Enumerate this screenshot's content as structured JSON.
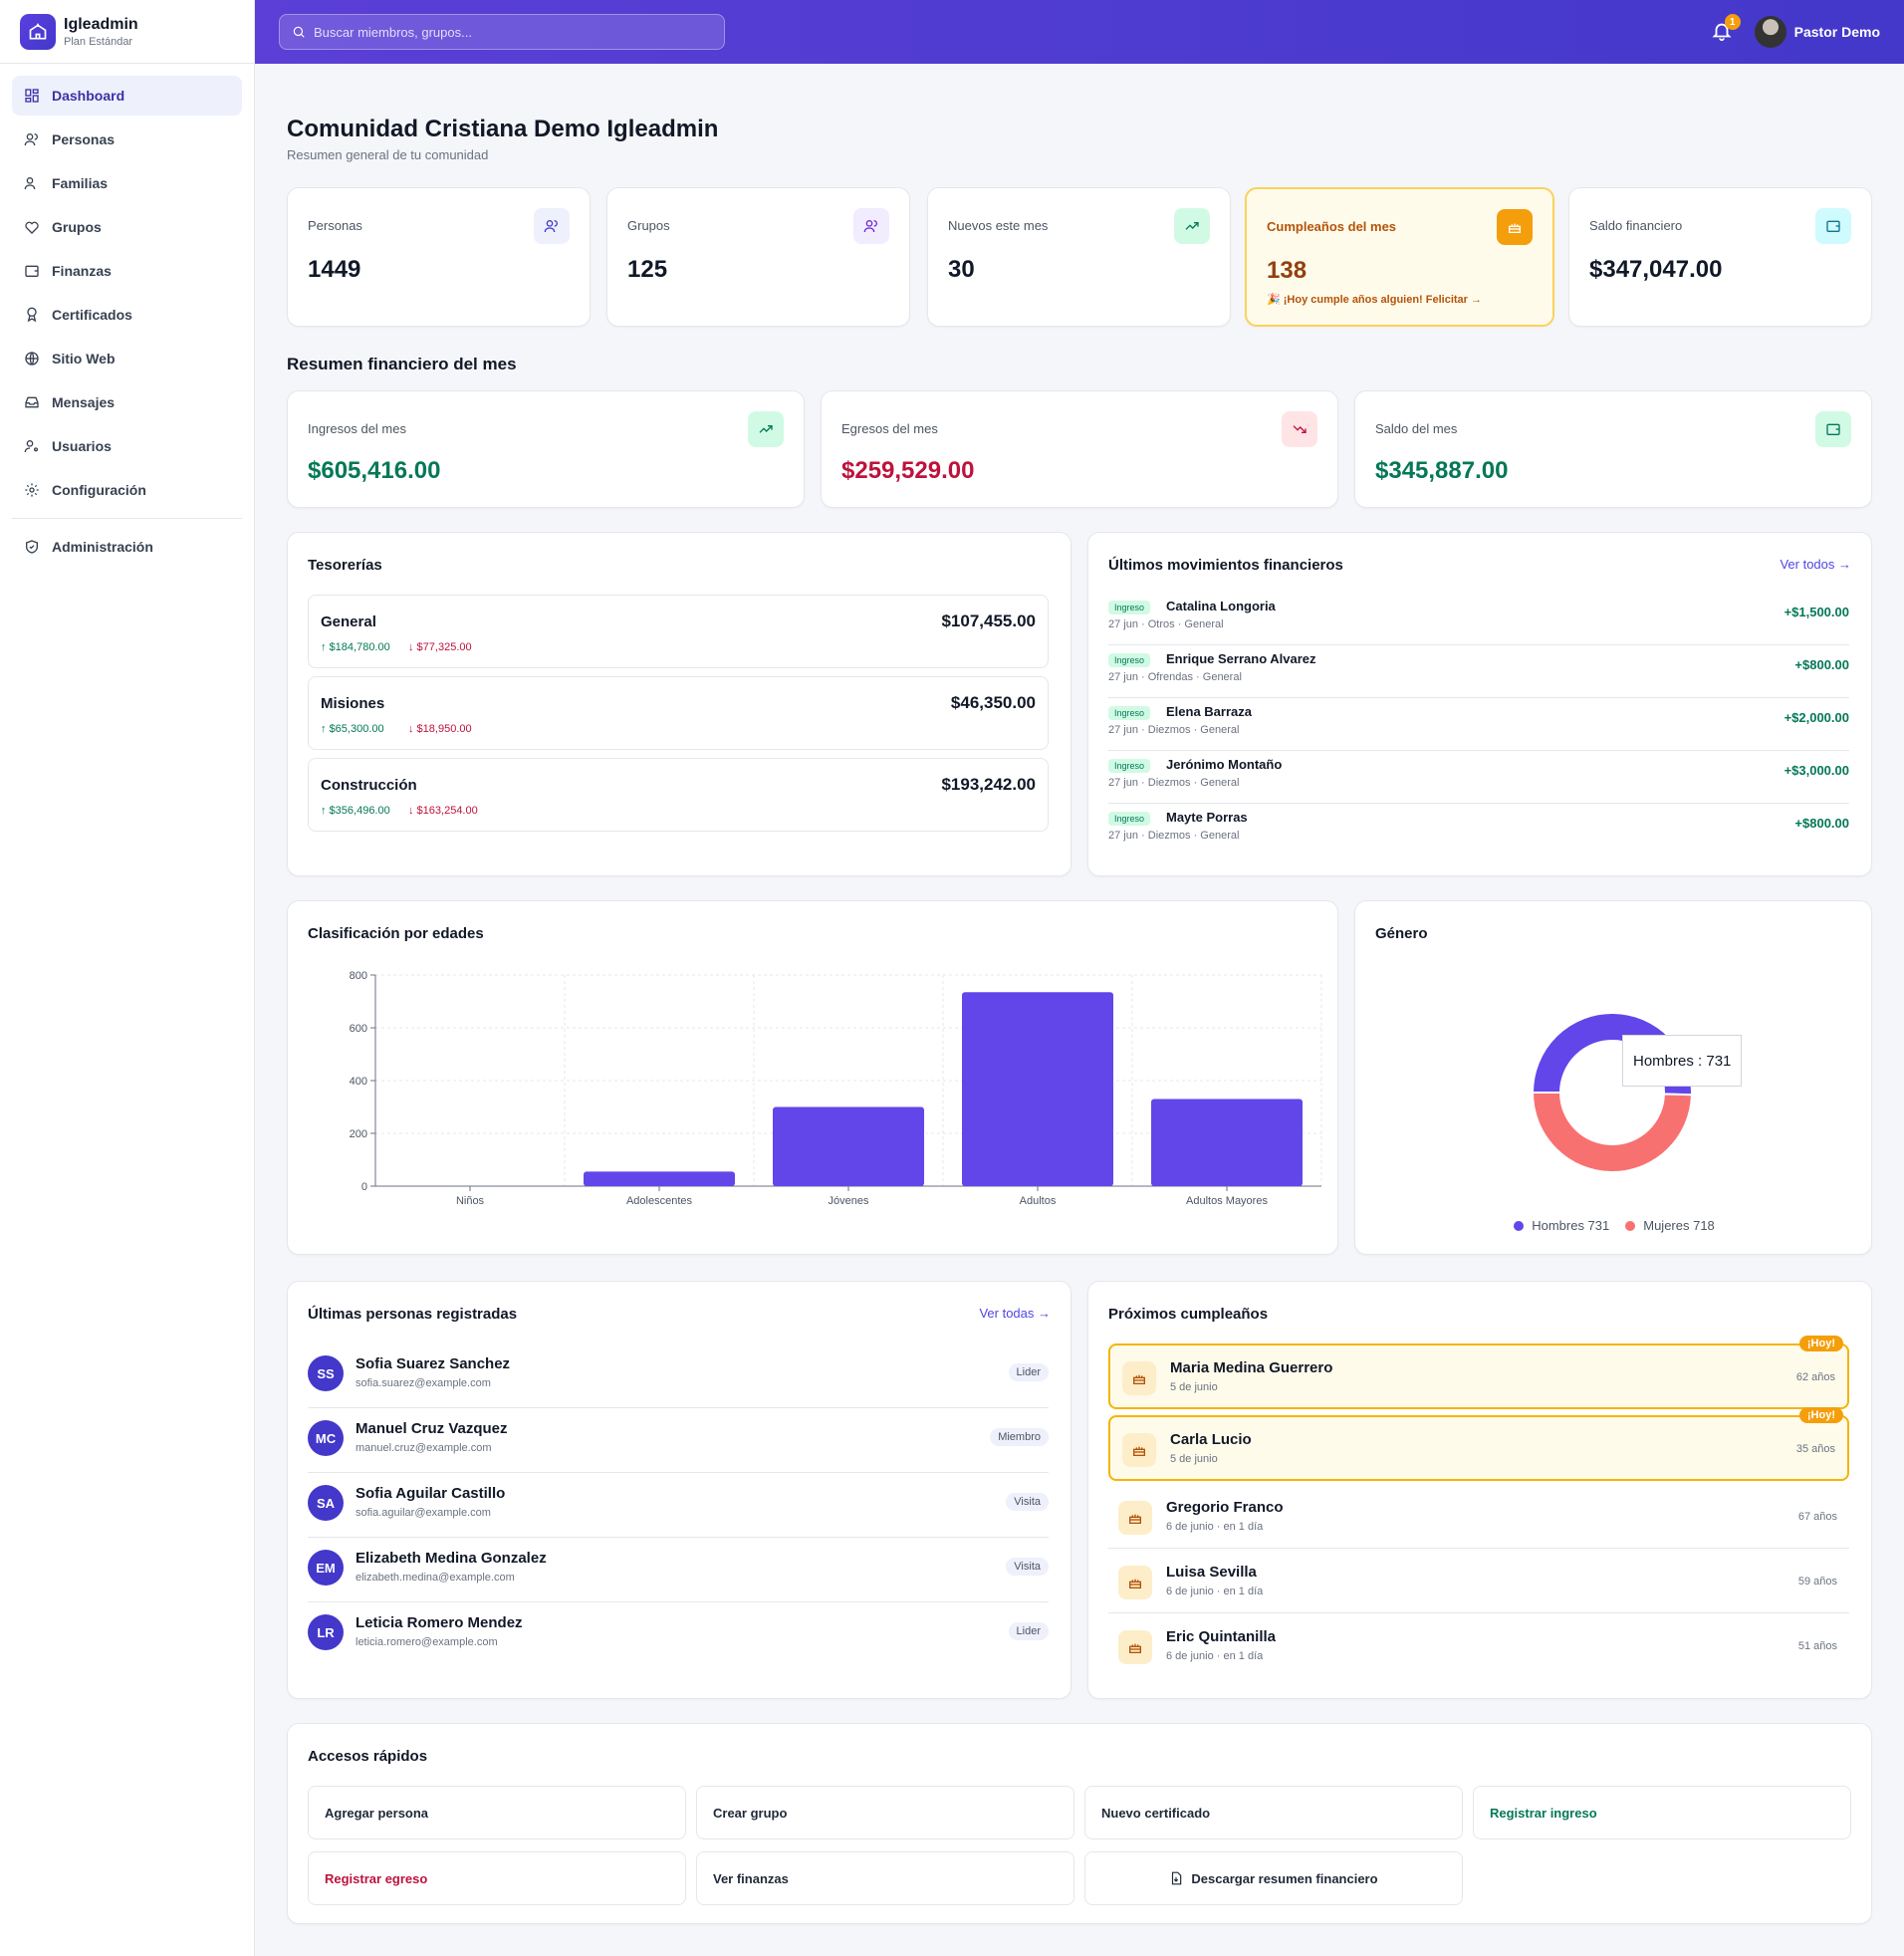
{
  "brand": {
    "name": "Igleadmin",
    "plan": "Plan Estándar"
  },
  "sidebar": {
    "items": [
      {
        "label": "Dashboard",
        "icon": "dashboard-icon"
      },
      {
        "label": "Personas",
        "icon": "users-icon"
      },
      {
        "label": "Familias",
        "icon": "family-icon"
      },
      {
        "label": "Grupos",
        "icon": "heart-handshake-icon"
      },
      {
        "label": "Finanzas",
        "icon": "wallet-icon"
      },
      {
        "label": "Certificados",
        "icon": "award-icon"
      },
      {
        "label": "Sitio Web",
        "icon": "globe-icon"
      },
      {
        "label": "Mensajes",
        "icon": "inbox-icon"
      },
      {
        "label": "Usuarios",
        "icon": "user-key-icon"
      },
      {
        "label": "Configuración",
        "icon": "gear-icon"
      }
    ],
    "admin": {
      "label": "Administración",
      "icon": "shield-icon"
    }
  },
  "header": {
    "search_placeholder": "Buscar miembros, grupos...",
    "notifications": "1",
    "user_name": "Pastor Demo"
  },
  "page": {
    "title": "Comunidad Cristiana Demo Igleadmin",
    "subtitle": "Resumen general de tu comunidad"
  },
  "stats": [
    {
      "label": "Personas",
      "value": "1449"
    },
    {
      "label": "Grupos",
      "value": "125"
    },
    {
      "label": "Nuevos este mes",
      "value": "30"
    },
    {
      "label": "Cumpleaños del mes",
      "value": "138",
      "note": "🎉 ¡Hoy cumple años alguien! Felicitar →"
    },
    {
      "label": "Saldo financiero",
      "value": "$347,047.00"
    }
  ],
  "finance": {
    "title": "Resumen financiero del mes",
    "cards": [
      {
        "label": "Ingresos del mes",
        "value": "$605,416.00",
        "color": "#047857"
      },
      {
        "label": "Egresos del mes",
        "value": "$259,529.00",
        "color": "#be123c"
      },
      {
        "label": "Saldo del mes",
        "value": "$345,887.00",
        "color": "#047857"
      }
    ]
  },
  "treasuries": {
    "title": "Tesorerías",
    "items": [
      {
        "name": "General",
        "amount": "$107,455.00",
        "in": "↑ $184,780.00",
        "out": "↓ $77,325.00"
      },
      {
        "name": "Misiones",
        "amount": "$46,350.00",
        "in": "↑ $65,300.00",
        "out": "↓ $18,950.00"
      },
      {
        "name": "Construcción",
        "amount": "$193,242.00",
        "in": "↑ $356,496.00",
        "out": "↓ $163,254.00"
      }
    ]
  },
  "movements": {
    "title": "Últimos movimientos financieros",
    "link": "Ver todos →",
    "items": [
      {
        "badge": "Ingreso",
        "name": "Catalina Longoria",
        "meta": "27 jun · Otros · General",
        "amount": "+$1,500.00"
      },
      {
        "badge": "Ingreso",
        "name": "Enrique Serrano Alvarez",
        "meta": "27 jun · Ofrendas · General",
        "amount": "+$800.00"
      },
      {
        "badge": "Ingreso",
        "name": "Elena Barraza",
        "meta": "27 jun · Diezmos · General",
        "amount": "+$2,000.00"
      },
      {
        "badge": "Ingreso",
        "name": "Jerónimo Montaño",
        "meta": "27 jun · Diezmos · General",
        "amount": "+$3,000.00"
      },
      {
        "badge": "Ingreso",
        "name": "Mayte Porras",
        "meta": "27 jun · Diezmos · General",
        "amount": "+$800.00"
      }
    ]
  },
  "chart_data": [
    {
      "type": "bar",
      "title": "Clasificación por edades",
      "categories": [
        "Niños",
        "Adolescentes",
        "Jóvenes",
        "Adultos",
        "Adultos Mayores"
      ],
      "values": [
        0,
        55,
        300,
        735,
        330
      ],
      "yticks": [
        0,
        200,
        400,
        600,
        800
      ],
      "ylim": [
        0,
        800
      ],
      "grid": true,
      "color": "#6246ea"
    },
    {
      "type": "pie",
      "title": "Género",
      "labels": [
        "Hombres",
        "Mujeres"
      ],
      "values": [
        731,
        718
      ],
      "colors": [
        "#6246ea",
        "#f87171"
      ],
      "legend": [
        "Hombres 731",
        "Mujeres 718"
      ],
      "legend_position": "bottom",
      "tooltip": "Hombres : 731"
    }
  ],
  "people": {
    "title": "Últimas personas registradas",
    "link": "Ver todas →",
    "items": [
      {
        "initials": "SS",
        "name": "Sofia Suarez Sanchez",
        "email": "sofia.suarez@example.com",
        "role": "Lider"
      },
      {
        "initials": "MC",
        "name": "Manuel Cruz Vazquez",
        "email": "manuel.cruz@example.com",
        "role": "Miembro"
      },
      {
        "initials": "SA",
        "name": "Sofia Aguilar Castillo",
        "email": "sofia.aguilar@example.com",
        "role": "Visita"
      },
      {
        "initials": "EM",
        "name": "Elizabeth Medina Gonzalez",
        "email": "elizabeth.medina@example.com",
        "role": "Visita"
      },
      {
        "initials": "LR",
        "name": "Leticia Romero Mendez",
        "email": "leticia.romero@example.com",
        "role": "Lider"
      }
    ]
  },
  "birthdays": {
    "title": "Próximos cumpleaños",
    "today_badge": "¡Hoy!",
    "items": [
      {
        "name": "Maria Medina Guerrero",
        "date": "5 de junio",
        "age": "62 años",
        "today": true
      },
      {
        "name": "Carla Lucio",
        "date": "5 de junio",
        "age": "35 años",
        "today": true
      },
      {
        "name": "Gregorio Franco",
        "date": "6 de junio · en 1 día",
        "age": "67 años",
        "today": false
      },
      {
        "name": "Luisa Sevilla",
        "date": "6 de junio · en 1 día",
        "age": "59 años",
        "today": false
      },
      {
        "name": "Eric Quintanilla",
        "date": "6 de junio · en 1 día",
        "age": "51 años",
        "today": false
      }
    ]
  },
  "quick": {
    "title": "Accesos rápidos",
    "items": [
      {
        "label": "Agregar persona",
        "color": "#1f2937"
      },
      {
        "label": "Crear grupo",
        "color": "#1f2937"
      },
      {
        "label": "Nuevo certificado",
        "color": "#1f2937"
      },
      {
        "label": "Registrar ingreso",
        "color": "#047857"
      },
      {
        "label": "Registrar egreso",
        "color": "#be123c"
      },
      {
        "label": "Ver finanzas",
        "color": "#1f2937"
      },
      {
        "label": "Descargar resumen financiero",
        "color": "#1f2937"
      }
    ]
  }
}
